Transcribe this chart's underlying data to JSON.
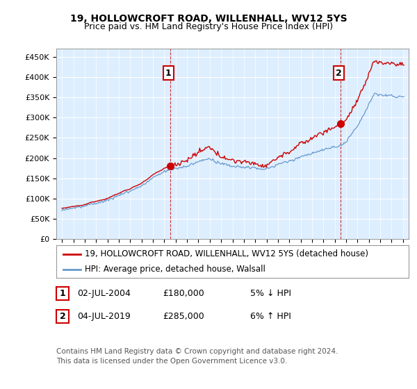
{
  "title": "19, HOLLOWCROFT ROAD, WILLENHALL, WV12 5YS",
  "subtitle": "Price paid vs. HM Land Registry's House Price Index (HPI)",
  "ylabel_ticks": [
    "£0",
    "£50K",
    "£100K",
    "£150K",
    "£200K",
    "£250K",
    "£300K",
    "£350K",
    "£400K",
    "£450K"
  ],
  "ytick_values": [
    0,
    50000,
    100000,
    150000,
    200000,
    250000,
    300000,
    350000,
    400000,
    450000
  ],
  "ylim": [
    0,
    470000
  ],
  "background_color": "#ffffff",
  "plot_bg_color": "#ddeeff",
  "grid_color": "#ffffff",
  "line_color_hpi": "#6699cc",
  "line_color_property": "#cc0000",
  "legend_label1": "19, HOLLOWCROFT ROAD, WILLENHALL, WV12 5YS (detached house)",
  "legend_label2": "HPI: Average price, detached house, Walsall",
  "footer": "Contains HM Land Registry data © Crown copyright and database right 2024.\nThis data is licensed under the Open Government Licence v3.0.",
  "title_fontsize": 10,
  "subtitle_fontsize": 9,
  "tick_fontsize": 8,
  "legend_fontsize": 8.5,
  "sale1_year": 2004.5,
  "sale1_price": 180000,
  "sale2_year": 2019.5,
  "sale2_price": 285000
}
